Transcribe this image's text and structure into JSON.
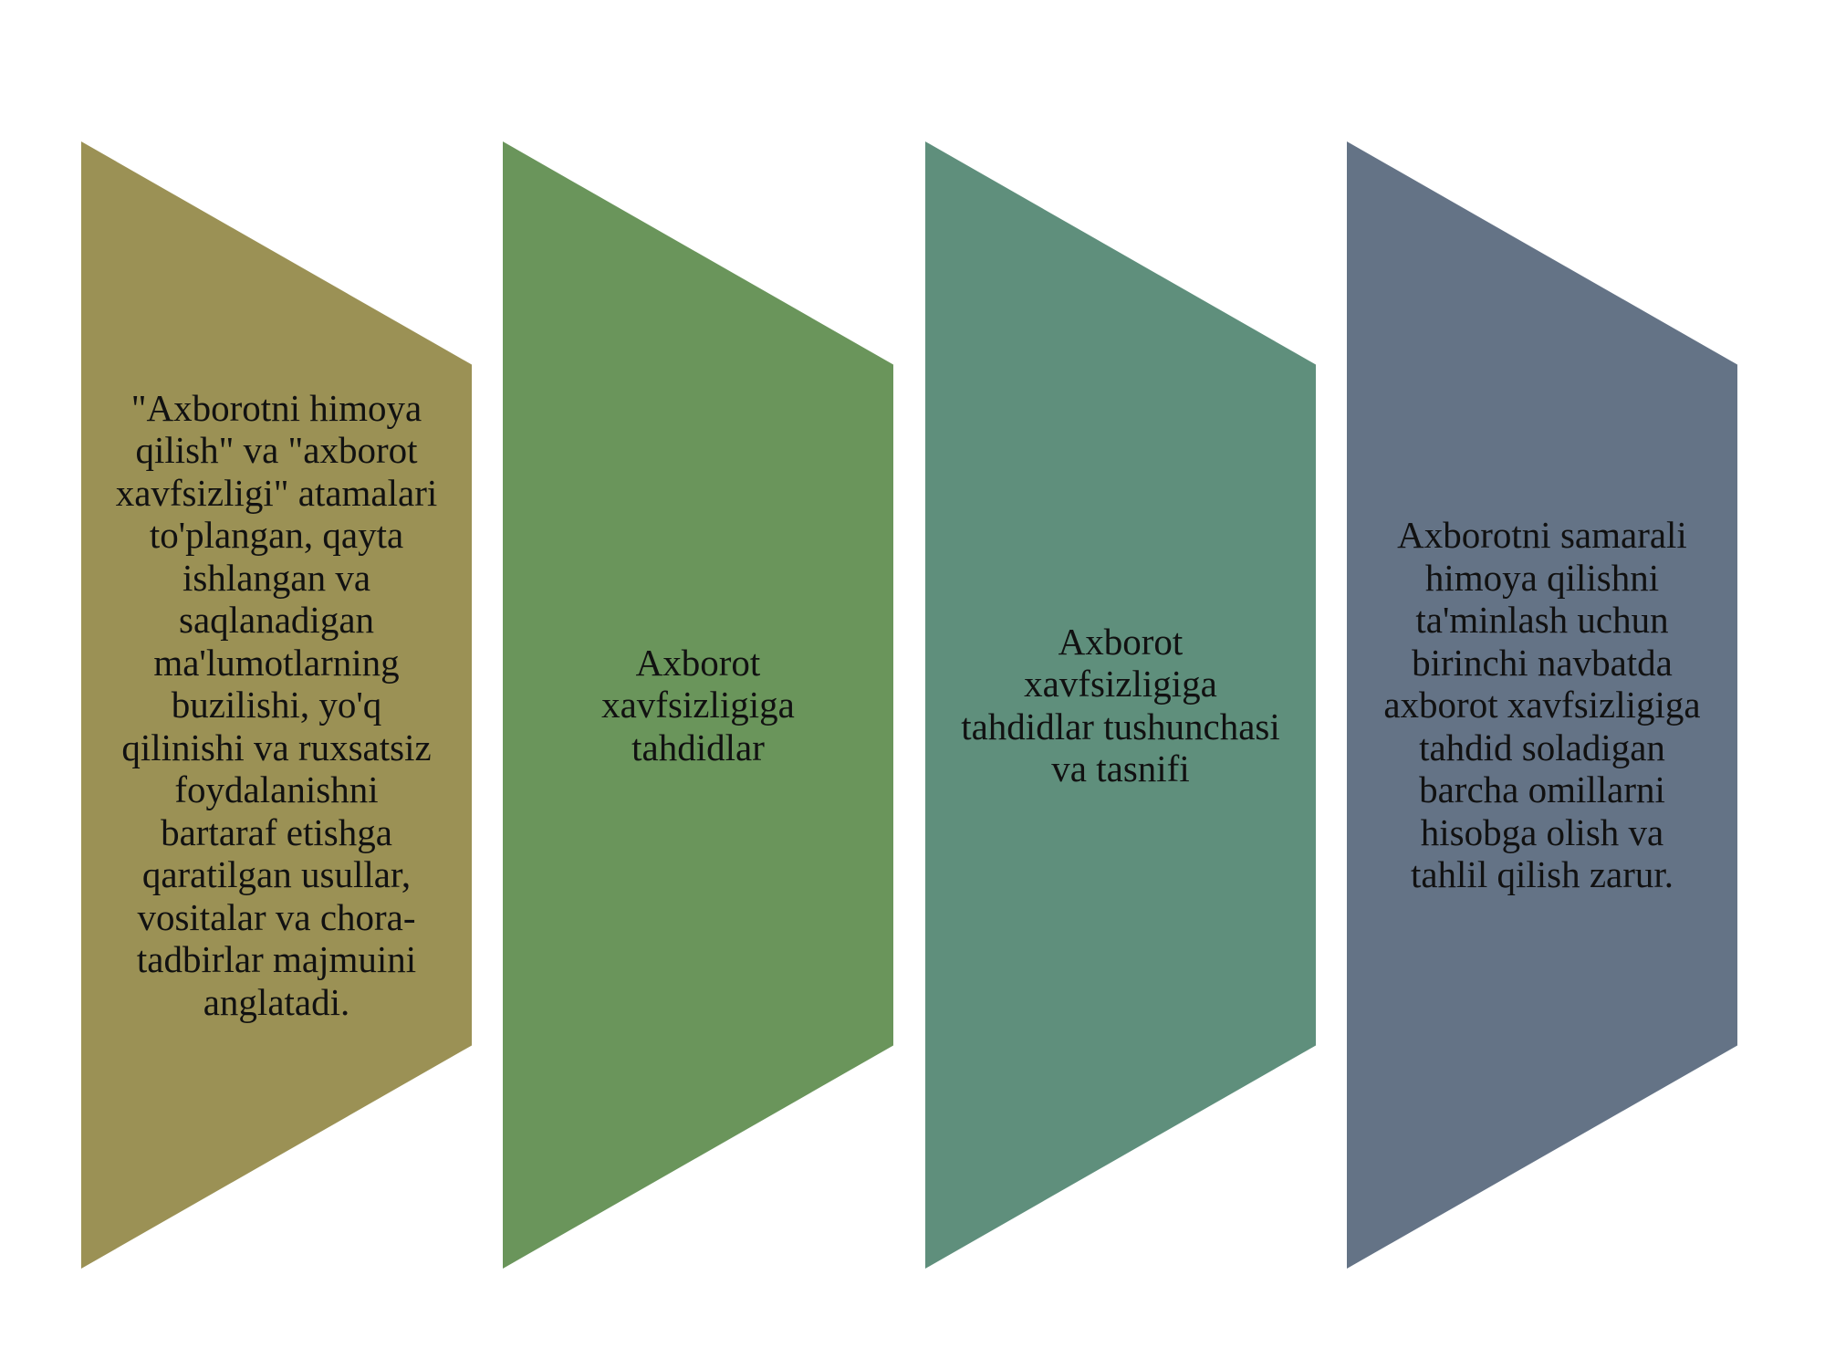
{
  "steps": [
    {
      "text": "\"Axborotni himoya\nqilish\" va \"axborot\nxavfsizligi\" atamalari\nto'plangan, qayta\nishlangan va\nsaqlanadigan\nma'lumotlarning\nbuzilishi, yo'q\nqilinishi va ruxsatsiz\nfoydalanishni\nbartaraf etishga\nqaratilgan usullar,\nvositalar va chora-\ntadbirlar majmuini\nanglatadi.",
      "color": "#9b9155"
    },
    {
      "text": "Axborot\nxavfsizligiga\ntahdidlar",
      "color": "#6a955b"
    },
    {
      "text": "Axborot\nxavfsizligiga\ntahdidlar tushunchasi\nva tasnifi",
      "color": "#5f8f7c"
    },
    {
      "text": "Axborotni samarali\nhimoya qilishni\nta'minlash uchun\nbirinchi navbatda\naxborot xavfsizligiga\ntahdid soladigan\nbarcha omillarni\nhisobga olish va\ntahlil qilish zarur.",
      "color": "#647386"
    }
  ]
}
